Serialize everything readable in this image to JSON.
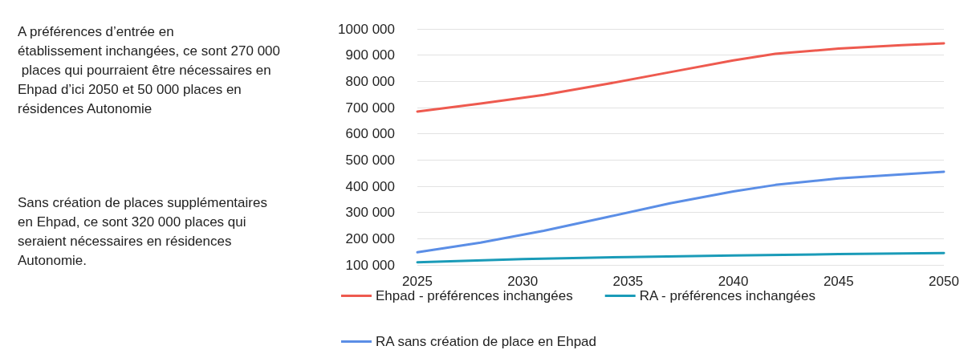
{
  "chart_data": {
    "type": "line",
    "annotations": [
      "A préférences d’entrée en établissement inchangées, ce sont 270 000 places qui pourraient être nécessaires en Ehpad d’ici 2050 et 50 000 places en résidences Autonomie",
      "Sans création de places supplémentaires en Ehpad, ce sont 320 000 places qui seraient nécessaires en résidences Autonomie."
    ],
    "series": [
      {
        "name": "Ehpad - préférences inchangées",
        "color": "#ee5a4f",
        "x": [
          2025,
          2028,
          2031,
          2034,
          2037,
          2040,
          2042,
          2045,
          2048,
          2050
        ],
        "values": [
          685000,
          715000,
          748000,
          790000,
          835000,
          880000,
          905000,
          925000,
          938000,
          945000
        ]
      },
      {
        "name": "RA - préférences inchangées",
        "color": "#1a9bb8",
        "x": [
          2025,
          2030,
          2035,
          2040,
          2045,
          2050
        ],
        "values": [
          110000,
          122000,
          130000,
          136000,
          141000,
          145000
        ]
      },
      {
        "name": "RA sans création de place en Ehpad",
        "color": "#5b8ee6",
        "x": [
          2025,
          2028,
          2031,
          2034,
          2037,
          2040,
          2042,
          2045,
          2048,
          2050
        ],
        "values": [
          148000,
          185000,
          230000,
          282000,
          335000,
          380000,
          405000,
          430000,
          445000,
          455000
        ]
      }
    ],
    "xlim": [
      2025,
      2050
    ],
    "xticks": [
      2025,
      2030,
      2035,
      2040,
      2045,
      2050
    ],
    "ylim": [
      100000,
      1000000
    ],
    "yticks": [
      {
        "value": 100000,
        "label": "100 000"
      },
      {
        "value": 200000,
        "label": "200 000"
      },
      {
        "value": 300000,
        "label": "300 000"
      },
      {
        "value": 400000,
        "label": "400 000"
      },
      {
        "value": 500000,
        "label": "500 000"
      },
      {
        "value": 600000,
        "label": "600 000"
      },
      {
        "value": 700000,
        "label": "700 000"
      },
      {
        "value": 800000,
        "label": "800 000"
      },
      {
        "value": 900000,
        "label": "900 000"
      },
      {
        "value": 1000000,
        "label": "1000 000"
      }
    ],
    "grid": "y",
    "legend": "bottom",
    "marker": "none",
    "line_style": "solid"
  }
}
